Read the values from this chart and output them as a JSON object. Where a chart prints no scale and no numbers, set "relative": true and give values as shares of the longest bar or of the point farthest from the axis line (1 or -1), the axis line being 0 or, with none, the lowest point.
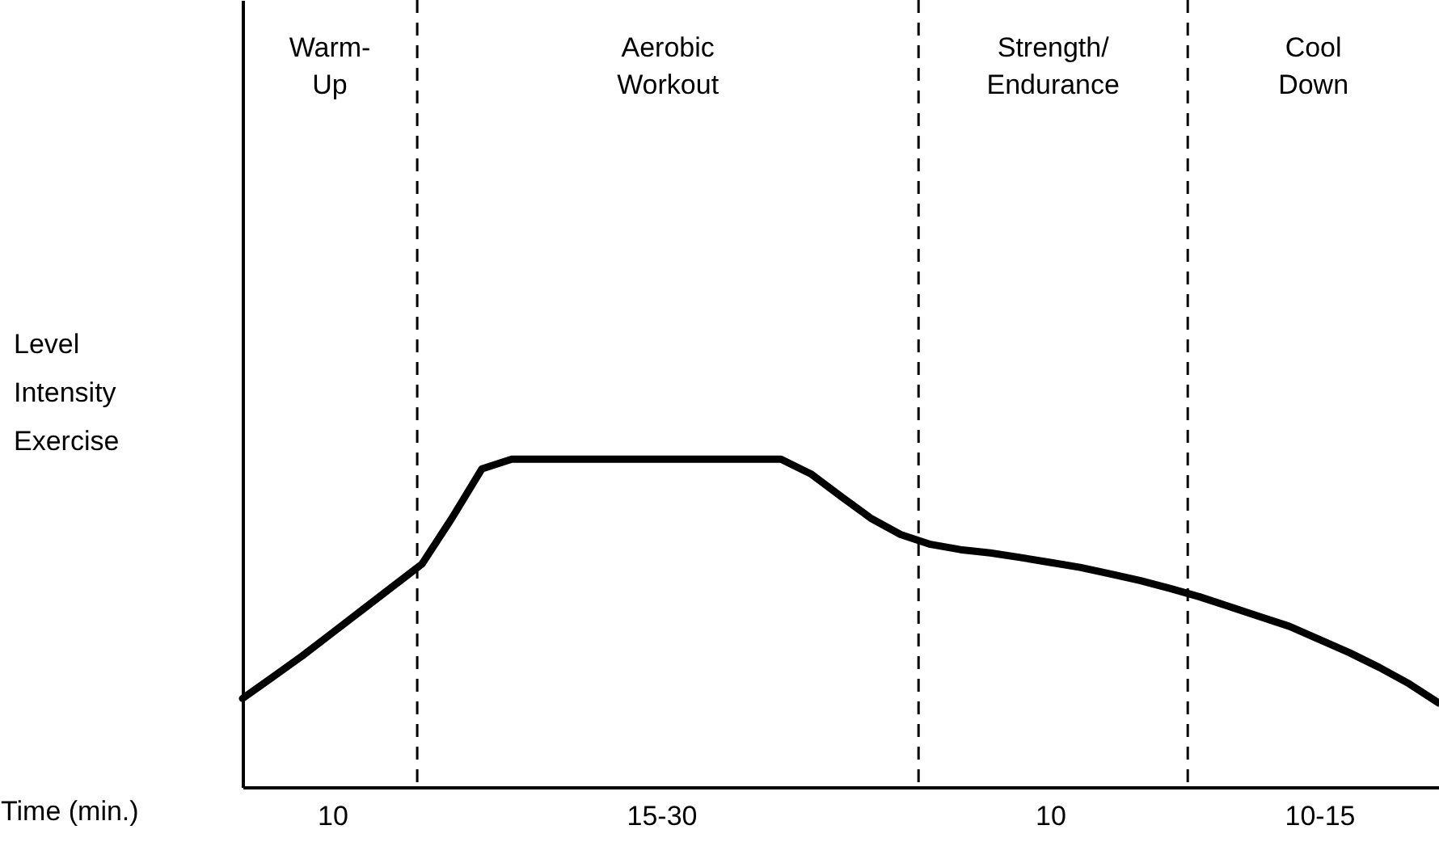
{
  "chart_data": {
    "type": "line",
    "relative": true,
    "xlabel": "Time (min.)",
    "ylabel": "Level\nIntensity\nExercise",
    "categories": [
      null,
      null,
      null,
      "10",
      null,
      null,
      null,
      null,
      null,
      null,
      null,
      null,
      null,
      null,
      "15-30",
      null,
      null,
      null,
      null,
      null,
      null,
      null,
      null,
      null,
      null,
      null,
      null,
      "10",
      null,
      null,
      null,
      null,
      null,
      null,
      null,
      null,
      "10-15",
      null,
      null,
      null,
      null
    ],
    "series": [
      {
        "color": "#000000",
        "values": [
          0.27,
          0.335,
          0.4,
          0.47,
          0.54,
          0.61,
          0.68,
          0.82,
          0.97,
          1,
          1,
          1,
          1,
          1,
          1,
          1,
          1,
          1,
          1,
          0.955,
          0.887,
          0.82,
          0.77,
          0.74,
          0.724,
          0.714,
          0.7,
          0.685,
          0.67,
          0.65,
          0.63,
          0.606,
          0.58,
          0.55,
          0.52,
          0.49,
          0.45,
          0.41,
          0.365,
          0.315,
          0.256
        ]
      }
    ],
    "annotations": [
      "Warm-\nUp",
      "Aerobic\nWorkout",
      "Strength/\nEndurance",
      "Cool\nDown"
    ],
    "grid": false,
    "marker": "none",
    "line_style": "solid"
  }
}
